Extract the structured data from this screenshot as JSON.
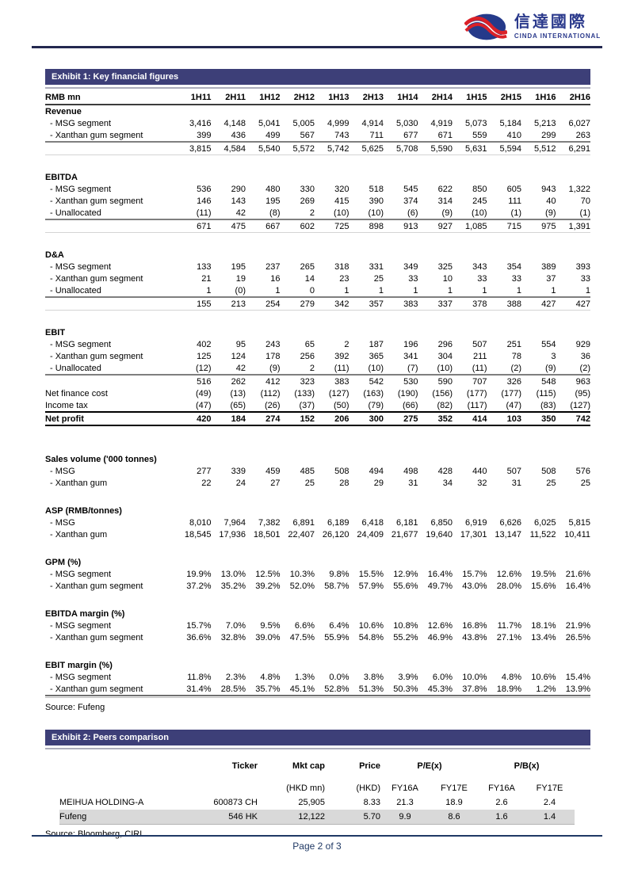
{
  "logo": {
    "chinese": "信達國際",
    "english": "CINDA INTERNATIONAL"
  },
  "exhibit1": {
    "title": "Exhibit 1: Key financial figures",
    "row_header": "RMB mn",
    "columns": [
      "1H11",
      "2H11",
      "1H12",
      "2H12",
      "1H13",
      "2H13",
      "1H14",
      "2H14",
      "1H15",
      "2H15",
      "1H16",
      "2H16"
    ],
    "rows": [
      {
        "type": "section",
        "label": "Revenue"
      },
      {
        "type": "data",
        "label": "- MSG segment",
        "values": [
          "3,416",
          "4,148",
          "5,041",
          "5,005",
          "4,999",
          "4,914",
          "5,030",
          "4,919",
          "5,073",
          "5,184",
          "5,213",
          "6,027"
        ]
      },
      {
        "type": "data",
        "label": "- Xanthan gum segment",
        "values": [
          "399",
          "436",
          "499",
          "567",
          "743",
          "711",
          "677",
          "671",
          "559",
          "410",
          "299",
          "263"
        ]
      },
      {
        "type": "total",
        "label": "",
        "values": [
          "3,815",
          "4,584",
          "5,540",
          "5,572",
          "5,742",
          "5,625",
          "5,708",
          "5,590",
          "5,631",
          "5,594",
          "5,512",
          "6,291"
        ]
      },
      {
        "type": "gap"
      },
      {
        "type": "section",
        "label": "EBITDA"
      },
      {
        "type": "data",
        "label": "- MSG segment",
        "values": [
          "536",
          "290",
          "480",
          "330",
          "320",
          "518",
          "545",
          "622",
          "850",
          "605",
          "943",
          "1,322"
        ]
      },
      {
        "type": "data",
        "label": "- Xanthan gum segment",
        "values": [
          "146",
          "143",
          "195",
          "269",
          "415",
          "390",
          "374",
          "314",
          "245",
          "111",
          "40",
          "70"
        ]
      },
      {
        "type": "data",
        "label": "- Unallocated",
        "values": [
          "(11)",
          "42",
          "(8)",
          "2",
          "(10)",
          "(10)",
          "(6)",
          "(9)",
          "(10)",
          "(1)",
          "(9)",
          "(1)"
        ]
      },
      {
        "type": "total",
        "label": "",
        "values": [
          "671",
          "475",
          "667",
          "602",
          "725",
          "898",
          "913",
          "927",
          "1,085",
          "715",
          "975",
          "1,391"
        ]
      },
      {
        "type": "gap"
      },
      {
        "type": "section",
        "label": "D&A"
      },
      {
        "type": "data",
        "label": "- MSG segment",
        "values": [
          "133",
          "195",
          "237",
          "265",
          "318",
          "331",
          "349",
          "325",
          "343",
          "354",
          "389",
          "393"
        ]
      },
      {
        "type": "data",
        "label": "- Xanthan gum segment",
        "values": [
          "21",
          "19",
          "16",
          "14",
          "23",
          "25",
          "33",
          "10",
          "33",
          "33",
          "37",
          "33"
        ]
      },
      {
        "type": "data",
        "label": "- Unallocated",
        "values": [
          "1",
          "(0)",
          "1",
          "0",
          "1",
          "1",
          "1",
          "1",
          "1",
          "1",
          "1",
          "1"
        ]
      },
      {
        "type": "total",
        "label": "",
        "values": [
          "155",
          "213",
          "254",
          "279",
          "342",
          "357",
          "383",
          "337",
          "378",
          "388",
          "427",
          "427"
        ]
      },
      {
        "type": "gap"
      },
      {
        "type": "section",
        "label": "EBIT"
      },
      {
        "type": "data",
        "label": "- MSG segment",
        "values": [
          "402",
          "95",
          "243",
          "65",
          "2",
          "187",
          "196",
          "296",
          "507",
          "251",
          "554",
          "929"
        ]
      },
      {
        "type": "data",
        "label": "- Xanthan gum segment",
        "values": [
          "125",
          "124",
          "178",
          "256",
          "392",
          "365",
          "341",
          "304",
          "211",
          "78",
          "3",
          "36"
        ]
      },
      {
        "type": "data",
        "label": "- Unallocated",
        "values": [
          "(12)",
          "42",
          "(9)",
          "2",
          "(11)",
          "(10)",
          "(7)",
          "(10)",
          "(11)",
          "(2)",
          "(9)",
          "(2)"
        ]
      },
      {
        "type": "totalt",
        "label": "",
        "values": [
          "516",
          "262",
          "412",
          "323",
          "383",
          "542",
          "530",
          "590",
          "707",
          "326",
          "548",
          "963"
        ]
      },
      {
        "type": "data0",
        "label": "Net finance cost",
        "values": [
          "(49)",
          "(13)",
          "(112)",
          "(133)",
          "(127)",
          "(163)",
          "(190)",
          "(156)",
          "(177)",
          "(177)",
          "(115)",
          "(95)"
        ]
      },
      {
        "type": "data0",
        "label": "Income tax",
        "values": [
          "(47)",
          "(65)",
          "(26)",
          "(37)",
          "(50)",
          "(79)",
          "(66)",
          "(82)",
          "(117)",
          "(47)",
          "(83)",
          "(127)"
        ]
      },
      {
        "type": "netprofit",
        "label": "Net profit",
        "values": [
          "420",
          "184",
          "274",
          "152",
          "206",
          "300",
          "275",
          "352",
          "414",
          "103",
          "350",
          "742"
        ]
      },
      {
        "type": "gap-lg"
      },
      {
        "type": "section",
        "label": "Sales volume ('000 tonnes)"
      },
      {
        "type": "data",
        "label": "- MSG",
        "values": [
          "277",
          "339",
          "459",
          "485",
          "508",
          "494",
          "498",
          "428",
          "440",
          "507",
          "508",
          "576"
        ]
      },
      {
        "type": "data",
        "label": "- Xanthan gum",
        "values": [
          "22",
          "24",
          "27",
          "25",
          "28",
          "29",
          "31",
          "34",
          "32",
          "31",
          "25",
          "25"
        ]
      },
      {
        "type": "gap"
      },
      {
        "type": "section",
        "label": "ASP (RMB/tonnes)"
      },
      {
        "type": "data",
        "label": "- MSG",
        "values": [
          "8,010",
          "7,964",
          "7,382",
          "6,891",
          "6,189",
          "6,418",
          "6,181",
          "6,850",
          "6,919",
          "6,626",
          "6,025",
          "5,815"
        ]
      },
      {
        "type": "data",
        "label": "- Xanthan gum",
        "values": [
          "18,545",
          "17,936",
          "18,501",
          "22,407",
          "26,120",
          "24,409",
          "21,677",
          "19,640",
          "17,301",
          "13,147",
          "11,522",
          "10,411"
        ]
      },
      {
        "type": "gap"
      },
      {
        "type": "section",
        "label": "GPM (%)"
      },
      {
        "type": "data",
        "label": "- MSG segment",
        "values": [
          "19.9%",
          "13.0%",
          "12.5%",
          "10.3%",
          "9.8%",
          "15.5%",
          "12.9%",
          "16.4%",
          "15.7%",
          "12.6%",
          "19.5%",
          "21.6%"
        ]
      },
      {
        "type": "data",
        "label": "- Xanthan gum segment",
        "values": [
          "37.2%",
          "35.2%",
          "39.2%",
          "52.0%",
          "58.7%",
          "57.9%",
          "55.6%",
          "49.7%",
          "43.0%",
          "28.0%",
          "15.6%",
          "16.4%"
        ]
      },
      {
        "type": "gap"
      },
      {
        "type": "section",
        "label": "EBITDA margin (%)"
      },
      {
        "type": "data",
        "label": "- MSG segment",
        "values": [
          "15.7%",
          "7.0%",
          "9.5%",
          "6.6%",
          "6.4%",
          "10.6%",
          "10.8%",
          "12.6%",
          "16.8%",
          "11.7%",
          "18.1%",
          "21.9%"
        ]
      },
      {
        "type": "data",
        "label": "- Xanthan gum segment",
        "values": [
          "36.6%",
          "32.8%",
          "39.0%",
          "47.5%",
          "55.9%",
          "54.8%",
          "55.2%",
          "46.9%",
          "43.8%",
          "27.1%",
          "13.4%",
          "26.5%"
        ]
      },
      {
        "type": "gap"
      },
      {
        "type": "section",
        "label": "EBIT margin (%)"
      },
      {
        "type": "data",
        "label": "- MSG segment",
        "values": [
          "11.8%",
          "2.3%",
          "4.8%",
          "1.3%",
          "0.0%",
          "3.8%",
          "3.9%",
          "6.0%",
          "10.0%",
          "4.8%",
          "10.6%",
          "15.4%"
        ]
      },
      {
        "type": "data",
        "label": "- Xanthan gum segment",
        "values": [
          "31.4%",
          "28.5%",
          "35.7%",
          "45.1%",
          "52.8%",
          "51.3%",
          "50.3%",
          "45.3%",
          "37.8%",
          "18.9%",
          "1.2%",
          "13.9%"
        ]
      }
    ],
    "source": "Source: Fufeng"
  },
  "exhibit2": {
    "title": "Exhibit 2: Peers comparison",
    "group_headers": [
      {
        "label": "",
        "span": 1,
        "align": "al"
      },
      {
        "label": "Ticker",
        "span": 1,
        "align": "ar"
      },
      {
        "label": "Mkt cap",
        "span": 1,
        "align": "ar"
      },
      {
        "label": "Price",
        "span": 1,
        "align": "ar"
      },
      {
        "label": "P/E(x)",
        "span": 2,
        "align": "ac"
      },
      {
        "label": "P/B(x)",
        "span": 2,
        "align": "ac"
      }
    ],
    "sub_headers": [
      "",
      "",
      "(HKD mn)",
      "(HKD)",
      "FY16A",
      "FY17E",
      "FY16A",
      "FY17E"
    ],
    "rows": [
      {
        "cells": [
          "MEIHUA HOLDING-A",
          "600873 CH",
          "25,905",
          "8.33",
          "21.3",
          "18.9",
          "2.6",
          "2.4"
        ],
        "highlight": false
      },
      {
        "cells": [
          "Fufeng",
          "546 HK",
          "12,122",
          "5.70",
          "9.9",
          "8.6",
          "1.6",
          "1.4"
        ],
        "highlight": true
      }
    ],
    "source": "Source: Bloomberg, CIRL"
  },
  "footer": {
    "page": "Page 2 of 3"
  },
  "colors": {
    "exhibit_bar": "#3d3f78",
    "highlight_row": "#d9d9d9",
    "footer_navy": "#1f3864",
    "logo_blue": "#2b3a8c",
    "logo_red": "#da2128"
  }
}
